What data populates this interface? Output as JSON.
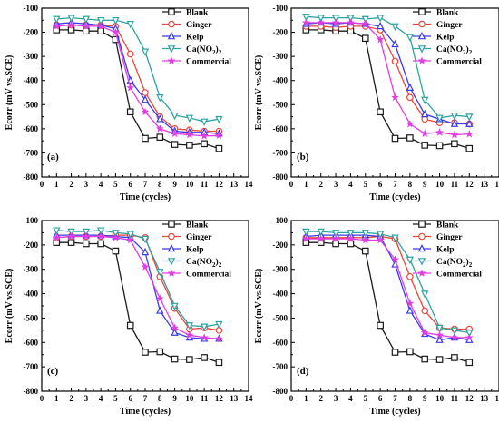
{
  "chart_data": [
    {
      "panel_label": "(a)",
      "type": "line",
      "xlabel": "Time (cycles)",
      "ylabel": "Ecorr (mV vs.SCE)",
      "xlim": [
        0,
        14
      ],
      "ylim": [
        -800,
        -100
      ],
      "x": [
        1,
        2,
        3,
        4,
        5,
        6,
        7,
        8,
        9,
        10,
        11,
        12
      ],
      "series": [
        {
          "name": "Blank",
          "color": "#1a1a1a",
          "marker": "square",
          "values": [
            -190,
            -190,
            -195,
            -195,
            -230,
            -530,
            -640,
            -635,
            -665,
            -668,
            -662,
            -682
          ]
        },
        {
          "name": "Ginger",
          "color": "#e8473a",
          "marker": "circle",
          "values": [
            -170,
            -170,
            -170,
            -170,
            -175,
            -290,
            -450,
            -550,
            -600,
            -605,
            -610,
            -610
          ]
        },
        {
          "name": "Kelp",
          "color": "#3a3ae8",
          "marker": "triangle",
          "values": [
            -165,
            -160,
            -165,
            -170,
            -185,
            -400,
            -480,
            -560,
            -610,
            -615,
            -615,
            -620
          ]
        },
        {
          "name": "Ca(NO2)2",
          "color": "#2ea3a3",
          "marker": "triangle-down",
          "values": [
            -145,
            -140,
            -145,
            -150,
            -150,
            -165,
            -280,
            -470,
            -545,
            -555,
            -570,
            -560
          ]
        },
        {
          "name": "Commercial",
          "color": "#e23de2",
          "marker": "star",
          "values": [
            -175,
            -170,
            -175,
            -175,
            -200,
            -430,
            -530,
            -600,
            -620,
            -625,
            -630,
            -628
          ]
        }
      ]
    },
    {
      "panel_label": "(b)",
      "type": "line",
      "xlabel": "Time (cycles)",
      "ylabel": "Ecorr (mV vs.SCE)",
      "xlim": [
        0,
        14
      ],
      "ylim": [
        -800,
        -100
      ],
      "x": [
        1,
        2,
        3,
        4,
        5,
        6,
        7,
        8,
        9,
        10,
        11,
        12
      ],
      "series": [
        {
          "name": "Blank",
          "color": "#1a1a1a",
          "marker": "square",
          "values": [
            -190,
            -190,
            -195,
            -195,
            -225,
            -530,
            -640,
            -638,
            -668,
            -670,
            -662,
            -682
          ]
        },
        {
          "name": "Ginger",
          "color": "#e8473a",
          "marker": "circle",
          "values": [
            -175,
            -175,
            -180,
            -175,
            -175,
            -190,
            -320,
            -470,
            -560,
            -575,
            -575,
            -580
          ]
        },
        {
          "name": "Kelp",
          "color": "#3a3ae8",
          "marker": "triangle",
          "values": [
            -165,
            -160,
            -165,
            -160,
            -165,
            -175,
            -250,
            -430,
            -540,
            -560,
            -580,
            -580
          ]
        },
        {
          "name": "Ca(NO2)2",
          "color": "#2ea3a3",
          "marker": "triangle-down",
          "values": [
            -135,
            -140,
            -140,
            -140,
            -145,
            -140,
            -175,
            -220,
            -480,
            -555,
            -545,
            -550
          ]
        },
        {
          "name": "Commercial",
          "color": "#e23de2",
          "marker": "star",
          "values": [
            -160,
            -160,
            -160,
            -160,
            -165,
            -230,
            -470,
            -580,
            -620,
            -615,
            -625,
            -622
          ]
        }
      ]
    },
    {
      "panel_label": "(c)",
      "type": "line",
      "xlabel": "Time (cycles)",
      "ylabel": "Ecorr (mV vs.SCE)",
      "xlim": [
        0,
        14
      ],
      "ylim": [
        -800,
        -100
      ],
      "x": [
        1,
        2,
        3,
        4,
        5,
        6,
        7,
        8,
        9,
        10,
        11,
        12
      ],
      "series": [
        {
          "name": "Blank",
          "color": "#1a1a1a",
          "marker": "square",
          "values": [
            -190,
            -190,
            -195,
            -195,
            -225,
            -530,
            -640,
            -638,
            -668,
            -670,
            -662,
            -682
          ]
        },
        {
          "name": "Ginger",
          "color": "#e8473a",
          "marker": "circle",
          "values": [
            -170,
            -165,
            -165,
            -165,
            -160,
            -160,
            -170,
            -330,
            -460,
            -545,
            -540,
            -550
          ]
        },
        {
          "name": "Kelp",
          "color": "#3a3ae8",
          "marker": "triangle",
          "values": [
            -160,
            -160,
            -160,
            -160,
            -165,
            -170,
            -230,
            -470,
            -560,
            -580,
            -585,
            -585
          ]
        },
        {
          "name": "Ca(NO2)2",
          "color": "#2ea3a3",
          "marker": "triangle-down",
          "values": [
            -140,
            -145,
            -145,
            -140,
            -150,
            -155,
            -175,
            -310,
            -450,
            -530,
            -535,
            -525
          ]
        },
        {
          "name": "Commercial",
          "color": "#e23de2",
          "marker": "star",
          "values": [
            -170,
            -165,
            -165,
            -165,
            -170,
            -180,
            -290,
            -420,
            -540,
            -570,
            -580,
            -585
          ]
        }
      ]
    },
    {
      "panel_label": "(d)",
      "type": "line",
      "xlabel": "Time (cycles)",
      "ylabel": "Ecorr (mV vs.SCE)",
      "xlim": [
        0,
        14
      ],
      "ylim": [
        -800,
        -100
      ],
      "x": [
        1,
        2,
        3,
        4,
        5,
        6,
        7,
        8,
        9,
        10,
        11,
        12
      ],
      "series": [
        {
          "name": "Blank",
          "color": "#1a1a1a",
          "marker": "square",
          "values": [
            -190,
            -190,
            -195,
            -195,
            -225,
            -530,
            -640,
            -638,
            -668,
            -670,
            -662,
            -682
          ]
        },
        {
          "name": "Ginger",
          "color": "#e8473a",
          "marker": "circle",
          "values": [
            -170,
            -170,
            -170,
            -170,
            -170,
            -165,
            -175,
            -330,
            -470,
            -540,
            -545,
            -545
          ]
        },
        {
          "name": "Kelp",
          "color": "#3a3ae8",
          "marker": "triangle",
          "values": [
            -165,
            -160,
            -160,
            -160,
            -160,
            -165,
            -280,
            -470,
            -565,
            -590,
            -580,
            -590
          ]
        },
        {
          "name": "Ca(NO2)2",
          "color": "#2ea3a3",
          "marker": "triangle-down",
          "values": [
            -145,
            -145,
            -150,
            -150,
            -150,
            -155,
            -170,
            -260,
            -400,
            -540,
            -550,
            -560
          ]
        },
        {
          "name": "Commercial",
          "color": "#e23de2",
          "marker": "star",
          "values": [
            -175,
            -175,
            -175,
            -175,
            -180,
            -180,
            -260,
            -440,
            -560,
            -570,
            -580,
            -580
          ]
        }
      ]
    }
  ]
}
